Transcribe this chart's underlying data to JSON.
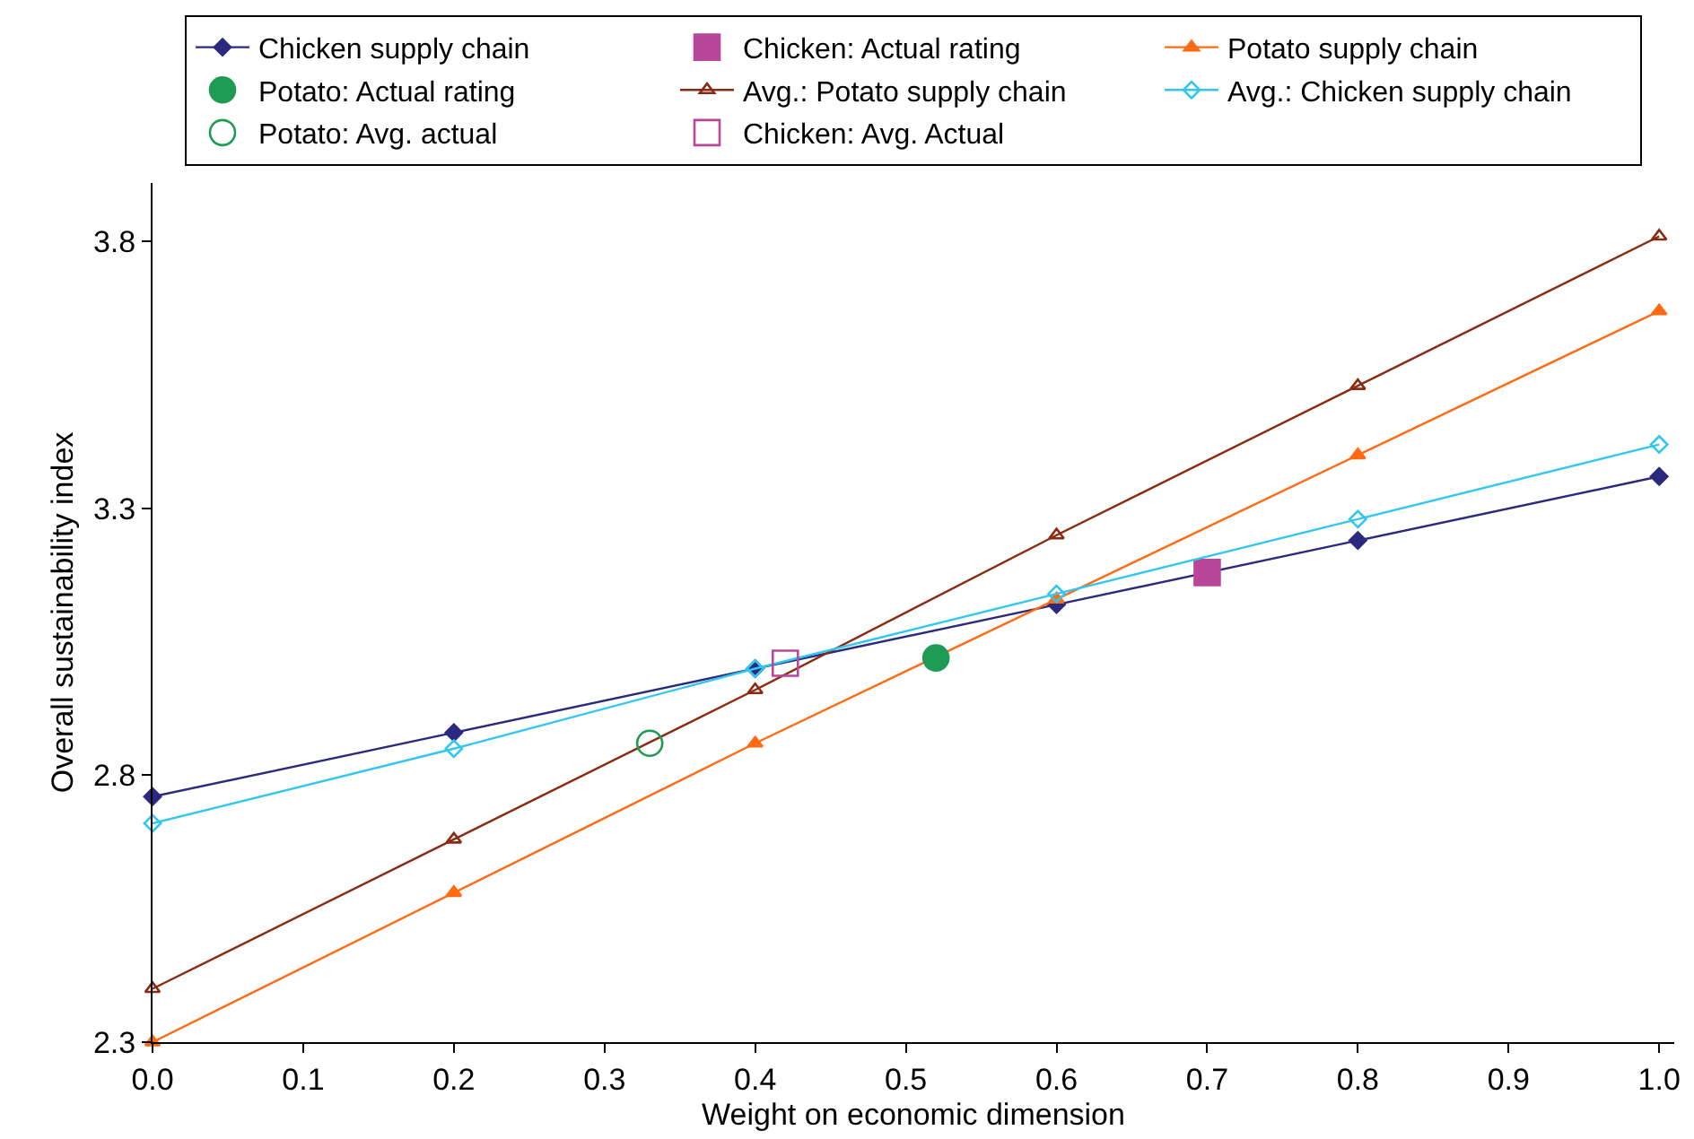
{
  "chart_data": {
    "type": "line",
    "xlabel": "Weight on economic dimension",
    "ylabel": "Overall sustainability index",
    "xlim": [
      0,
      1.01
    ],
    "xticks": [
      {
        "value": 0,
        "label": "0.0"
      },
      0.1,
      0.2,
      0.3,
      0.4,
      0.5,
      0.6,
      0.7,
      0.8,
      0.9,
      {
        "value": 1,
        "label": "1.0"
      }
    ],
    "ylim": [
      2.3,
      3.91
    ],
    "yticks": [
      2.3,
      2.8,
      3.3,
      3.8
    ],
    "legend": "top",
    "series": [
      {
        "name": "Chicken supply chain",
        "color": "#2b2a7e",
        "marker": "diamond",
        "x": [
          0,
          0.2,
          0.4,
          0.6,
          0.8,
          1.0
        ],
        "values": [
          2.76,
          2.88,
          3.0,
          3.12,
          3.24,
          3.36
        ]
      },
      {
        "name": "Chicken: Actual rating",
        "type": "scatter",
        "color": "#b8479a",
        "marker": "square",
        "x": [
          0.7
        ],
        "values": [
          3.18
        ]
      },
      {
        "name": "Potato supply chain",
        "color": "#ff6a13",
        "marker": "triangle",
        "x": [
          0,
          0.2,
          0.4,
          0.6,
          0.8,
          1.0
        ],
        "values": [
          2.3,
          2.58,
          2.86,
          3.13,
          3.4,
          3.67
        ]
      },
      {
        "name": "Potato: Actual rating",
        "type": "scatter",
        "color": "#1e9b55",
        "marker": "circle",
        "x": [
          0.52
        ],
        "values": [
          3.02
        ]
      },
      {
        "name": "Avg.: Potato supply chain",
        "color": "#8b2a12",
        "marker": "triangle-open",
        "x": [
          0,
          0.2,
          0.4,
          0.6,
          0.8,
          1.0
        ],
        "values": [
          2.4,
          2.68,
          2.96,
          3.25,
          3.53,
          3.81
        ]
      },
      {
        "name": "Avg.: Chicken supply chain",
        "color": "#33c6f0",
        "marker": "diamond-open",
        "x": [
          0,
          0.2,
          0.4,
          0.6,
          0.8,
          1.0
        ],
        "values": [
          2.71,
          2.85,
          3.0,
          3.14,
          3.28,
          3.42
        ]
      },
      {
        "name": "Potato: Avg. actual",
        "type": "scatter",
        "color": "#1e9b55",
        "marker": "circle-open",
        "x": [
          0.33
        ],
        "values": [
          2.86
        ]
      },
      {
        "name": "Chicken: Avg. Actual",
        "type": "scatter",
        "color": "#b8479a",
        "marker": "square-open",
        "x": [
          0.42
        ],
        "values": [
          3.01
        ]
      }
    ]
  }
}
